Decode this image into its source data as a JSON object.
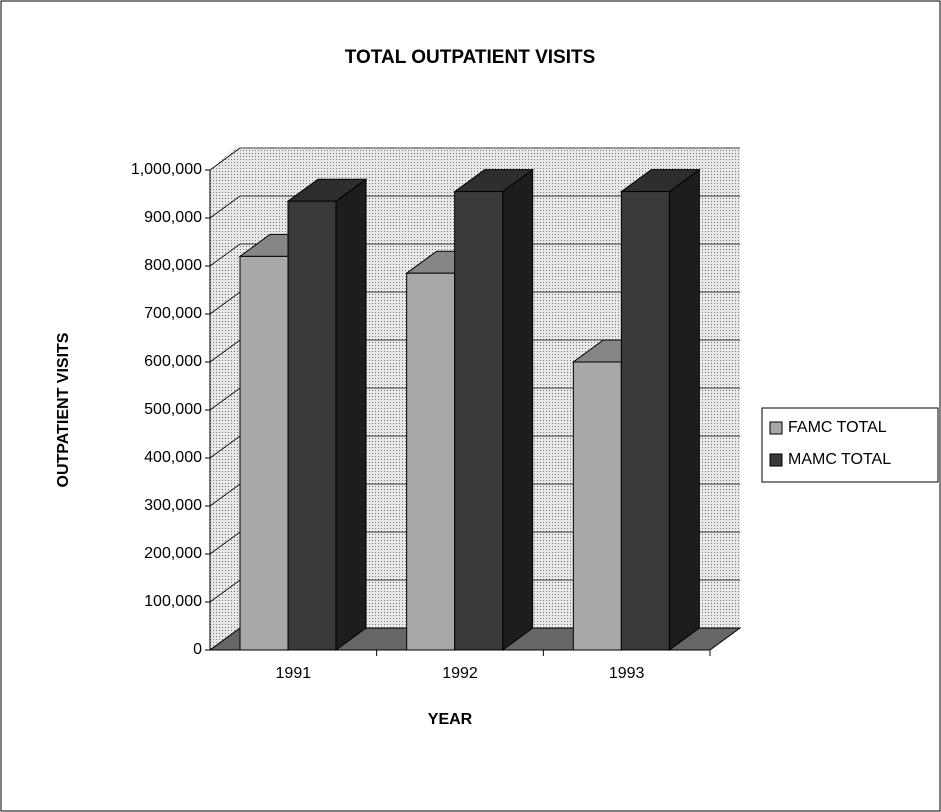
{
  "chart_data": {
    "type": "bar3d",
    "title": "TOTAL OUTPATIENT VISITS",
    "x_label": "YEAR",
    "y_label": "OUTPATIENT VISITS",
    "categories": [
      "1991",
      "1992",
      "1993"
    ],
    "series": [
      {
        "name": "FAMC TOTAL",
        "color": "#a8a8a8",
        "values": [
          820000,
          785000,
          600000
        ]
      },
      {
        "name": "MAMC TOTAL",
        "color": "#3a3a3a",
        "values": [
          935000,
          955000,
          955000
        ]
      }
    ],
    "ylim": [
      0,
      1000000
    ],
    "yticks": [
      0,
      {
        "value": 100000,
        "label": "100,000"
      },
      {
        "value": 200000,
        "label": "200,000"
      },
      {
        "value": 300000,
        "label": "300,000"
      },
      {
        "value": 400000,
        "label": "400,000"
      },
      {
        "value": 500000,
        "label": "500,000"
      },
      {
        "value": 600000,
        "label": "600,000"
      },
      {
        "value": 700000,
        "label": "700,000"
      },
      {
        "value": 800000,
        "label": "800,000"
      },
      {
        "value": 900000,
        "label": "900,000"
      },
      {
        "value": 1000000,
        "label": "1,000,000"
      }
    ],
    "grid": true,
    "legend": "right"
  }
}
